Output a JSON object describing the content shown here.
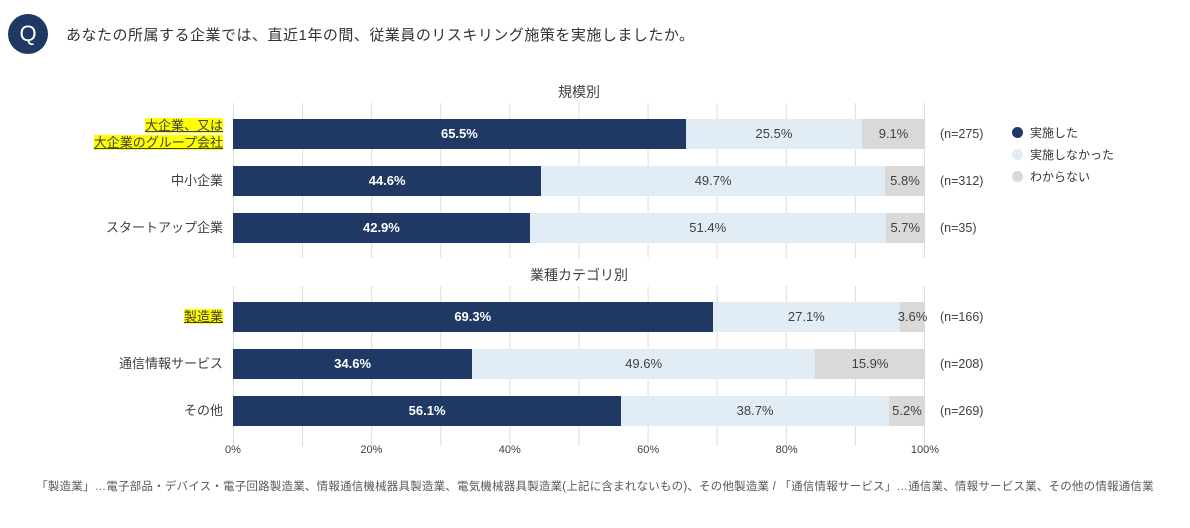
{
  "question": {
    "icon": "Q",
    "text": "あなたの所属する企業では、直近1年の間、従業員のリスキリング施策を実施しましたか。"
  },
  "legend": [
    {
      "label": "実施した",
      "color": "#1f3864"
    },
    {
      "label": "実施しなかった",
      "color": "#e1ecf4"
    },
    {
      "label": "わからない",
      "color": "#d9d9d9"
    }
  ],
  "colors": {
    "accent_navy": "#1f3864",
    "light_blue": "#e1ecf4",
    "gray": "#d9d9d9",
    "highlight_yellow": "#ffff00",
    "gridline": "#dcdcdc"
  },
  "chart_data": [
    {
      "type": "bar",
      "stacked": true,
      "orientation": "horizontal",
      "title": "規模別",
      "xlim": [
        0,
        100
      ],
      "grid": true,
      "categories": [
        "大企業、又は\n大企業のグループ会社",
        "中小企業",
        "スタートアップ企業"
      ],
      "highlighted": [
        true,
        false,
        false
      ],
      "series": [
        {
          "name": "実施した",
          "color": "#1f3864",
          "values": [
            65.5,
            44.6,
            42.9
          ]
        },
        {
          "name": "実施しなかった",
          "color": "#e1ecf4",
          "values": [
            25.5,
            49.7,
            51.4
          ]
        },
        {
          "name": "わからない",
          "color": "#d9d9d9",
          "values": [
            9.1,
            5.8,
            5.7
          ]
        }
      ],
      "n_labels": [
        "(n=275)",
        "(n=312)",
        "(n=35)"
      ]
    },
    {
      "type": "bar",
      "stacked": true,
      "orientation": "horizontal",
      "title": "業種カテゴリ別",
      "xlim": [
        0,
        100
      ],
      "grid": true,
      "categories": [
        "製造業",
        "通信情報サービス",
        "その他"
      ],
      "highlighted": [
        true,
        false,
        false
      ],
      "series": [
        {
          "name": "実施した",
          "color": "#1f3864",
          "values": [
            69.3,
            34.6,
            56.1
          ]
        },
        {
          "name": "実施しなかった",
          "color": "#e1ecf4",
          "values": [
            27.1,
            49.6,
            38.7
          ]
        },
        {
          "name": "わからない",
          "color": "#d9d9d9",
          "values": [
            3.6,
            15.9,
            5.2
          ]
        }
      ],
      "n_labels": [
        "(n=166)",
        "(n=208)",
        "(n=269)"
      ]
    }
  ],
  "x_axis": {
    "ticks": [
      "0%",
      "20%",
      "40%",
      "60%",
      "80%",
      "100%"
    ]
  },
  "footnote": "「製造業」…電子部品・デバイス・電子回路製造業、情報通信機械器具製造業、電気機械器具製造業(上記に含まれないもの)、その他製造業 / 「通信情報サービス」…通信業、情報サービス業、その他の情報通信業"
}
